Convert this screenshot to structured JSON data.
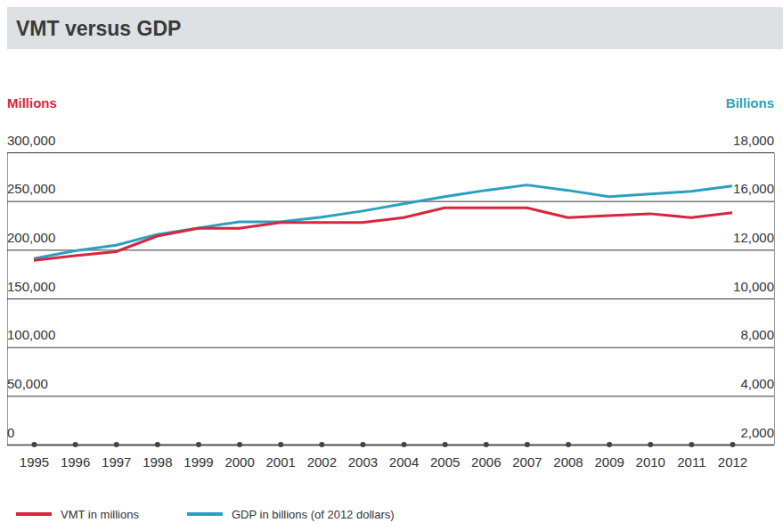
{
  "chart_data": {
    "type": "line",
    "title": "VMT versus GDP",
    "ylabel": "Millions",
    "y2label": "Billions",
    "categories": [
      "1995",
      "1996",
      "1997",
      "1998",
      "1999",
      "2000",
      "2001",
      "2002",
      "2003",
      "2004",
      "2005",
      "2006",
      "2007",
      "2008",
      "2009",
      "2010",
      "2011",
      "2012"
    ],
    "series": [
      {
        "name": "VMT in millions",
        "color": "#d7263d",
        "values": [
          189000,
          194000,
          198000,
          214000,
          222000,
          222000,
          228000,
          228000,
          228000,
          233000,
          243000,
          243000,
          243000,
          233000,
          235000,
          237000,
          233000,
          238000
        ]
      },
      {
        "name": "GDP in billions (of 2012 dollars)",
        "color": "#2aa0c0",
        "axis": "y2",
        "values": [
          11640,
          11960,
          12370,
          13260,
          13780,
          14300,
          14300,
          14670,
          15180,
          15780,
          16180,
          16440,
          16660,
          16440,
          16180,
          16290,
          16400,
          16620
        ]
      }
    ],
    "ylim": [
      0,
      300000
    ],
    "yticks": [
      0,
      {
        "value": 50000,
        "label": "50,000"
      },
      {
        "value": 100000,
        "label": "100,000"
      },
      {
        "value": 150000,
        "label": "150,000"
      },
      {
        "value": 200000,
        "label": "200,000"
      },
      {
        "value": 250000,
        "label": "250,000"
      },
      {
        "value": 300000,
        "label": "300,000"
      }
    ],
    "y2lim": [
      2000,
      18000
    ],
    "y2ticks": [
      {
        "value": 2000,
        "label": "2,000"
      },
      {
        "value": 4000,
        "label": "4,000"
      },
      {
        "value": 8000,
        "label": "8,000"
      },
      {
        "value": 10000,
        "label": "10,000"
      },
      {
        "value": 12000,
        "label": "12,000"
      },
      {
        "value": 16000,
        "label": "16,000"
      },
      {
        "value": 18000,
        "label": "18,000"
      }
    ],
    "grid": true,
    "legend": "bottom-left"
  }
}
